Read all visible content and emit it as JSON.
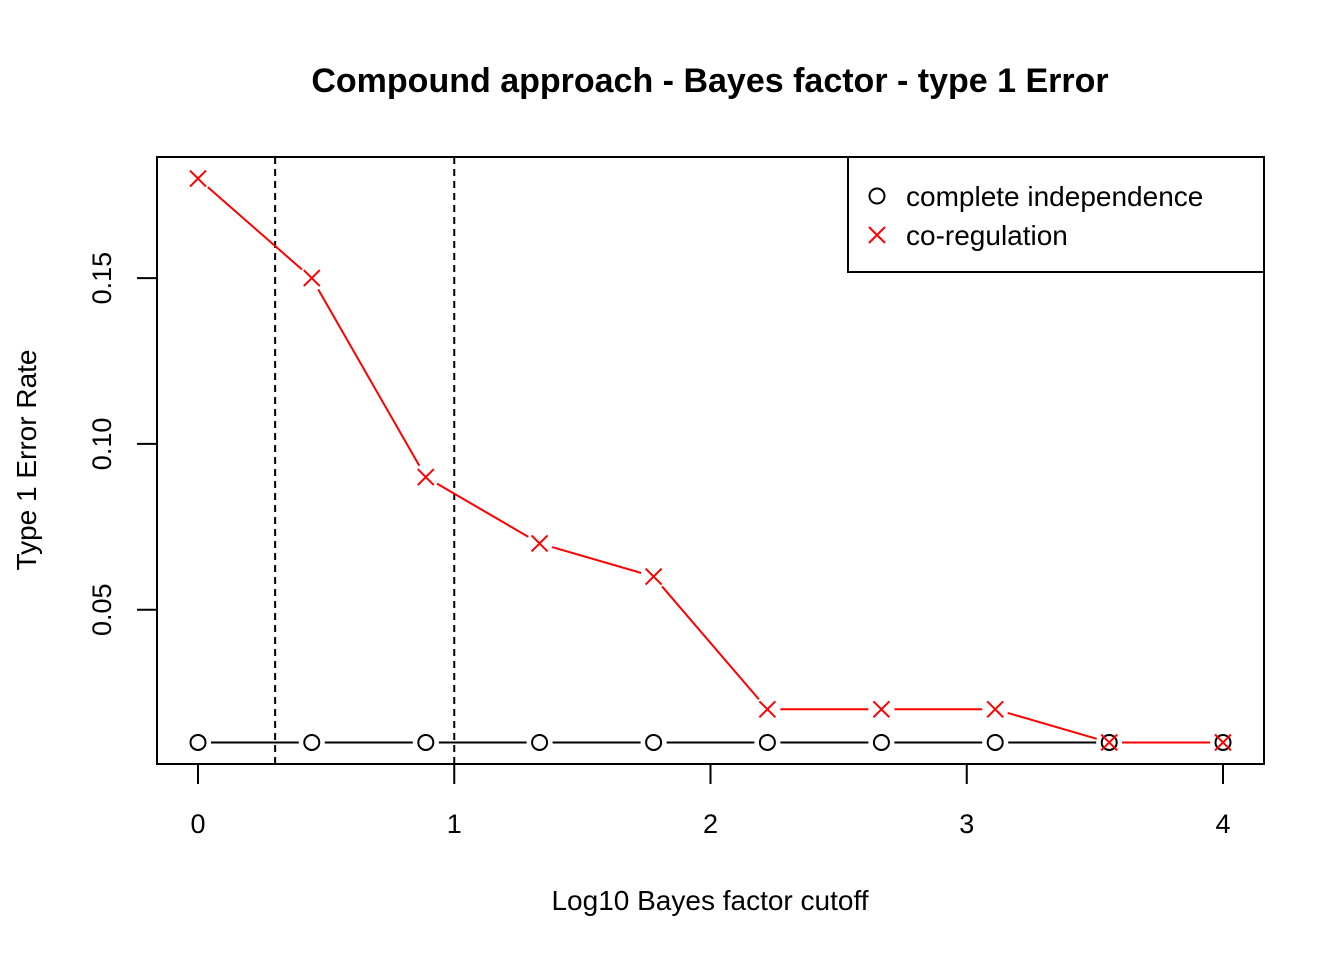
{
  "chart_data": {
    "type": "line",
    "title": "Compound approach - Bayes factor - type 1 Error",
    "xlabel": "Log10 Bayes factor cutoff",
    "ylabel": "Type 1 Error Rate",
    "xlim": [
      -0.16,
      4.16
    ],
    "ylim": [
      0.0035,
      0.1865
    ],
    "x_ticks": [
      0,
      1,
      2,
      3,
      4
    ],
    "x_tick_labels": [
      "0",
      "1",
      "2",
      "3",
      "4"
    ],
    "y_ticks": [
      0.05,
      0.1,
      0.15
    ],
    "y_tick_labels": [
      "0.05",
      "0.10",
      "0.15"
    ],
    "x": [
      0,
      0.444,
      0.889,
      1.333,
      1.778,
      2.222,
      2.667,
      3.111,
      3.556,
      4.0
    ],
    "series": [
      {
        "name": "complete independence",
        "values": [
          0.01,
          0.01,
          0.01,
          0.01,
          0.01,
          0.01,
          0.01,
          0.01,
          0.01,
          0.01
        ],
        "color": "#000000",
        "marker": "circle"
      },
      {
        "name": "co-regulation",
        "values": [
          0.18,
          0.15,
          0.09,
          0.07,
          0.06,
          0.02,
          0.02,
          0.02,
          0.01,
          0.01
        ],
        "color": "#ff0000",
        "marker": "cross"
      }
    ],
    "vlines": [
      0.301,
      1.0
    ],
    "grid": false,
    "legend_position": "top-right"
  }
}
